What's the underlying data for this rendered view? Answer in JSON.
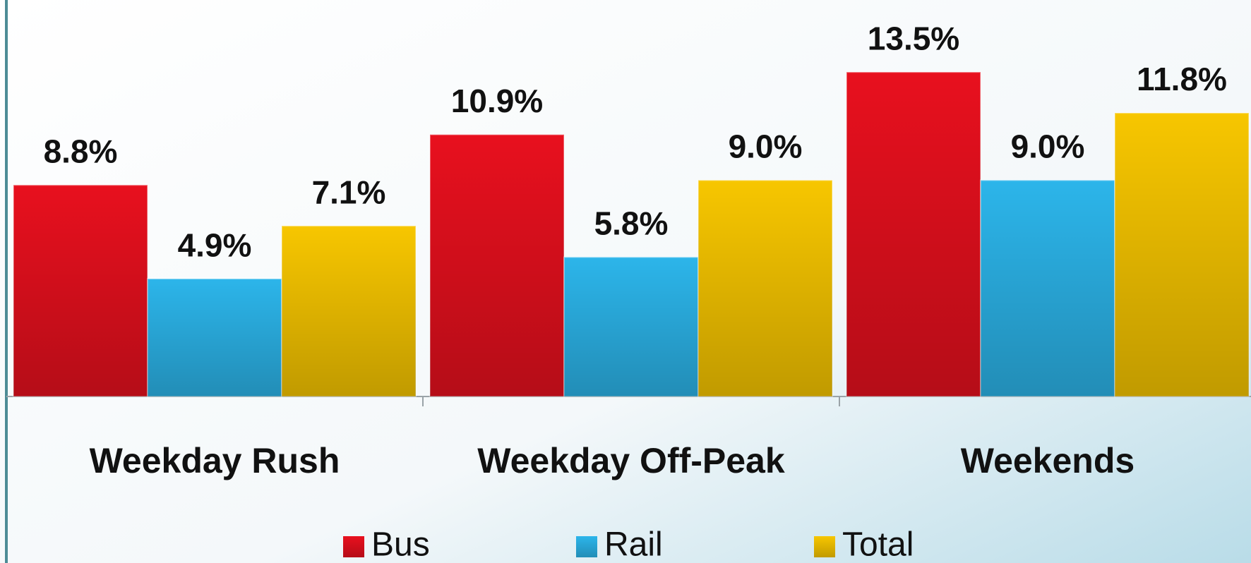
{
  "chart_data": {
    "type": "bar",
    "categories": [
      "Weekday Rush",
      "Weekday Off-Peak",
      "Weekends"
    ],
    "series": [
      {
        "name": "Bus",
        "color": "#e8101e",
        "values": [
          8.8,
          10.9,
          13.5
        ],
        "value_labels": [
          "8.8%",
          "10.9%",
          "13.5%"
        ]
      },
      {
        "name": "Rail",
        "color": "#2cb5ea",
        "values": [
          4.9,
          5.8,
          9.0
        ],
        "value_labels": [
          "4.9%",
          "5.8%",
          "9.0%"
        ]
      },
      {
        "name": "Total",
        "color": "#f7c600",
        "values": [
          7.1,
          9.0,
          11.8
        ],
        "value_labels": [
          "7.1%",
          "9.0%",
          "11.8%"
        ]
      }
    ],
    "ylim": [
      0,
      16.5
    ],
    "legend": "bottom"
  }
}
